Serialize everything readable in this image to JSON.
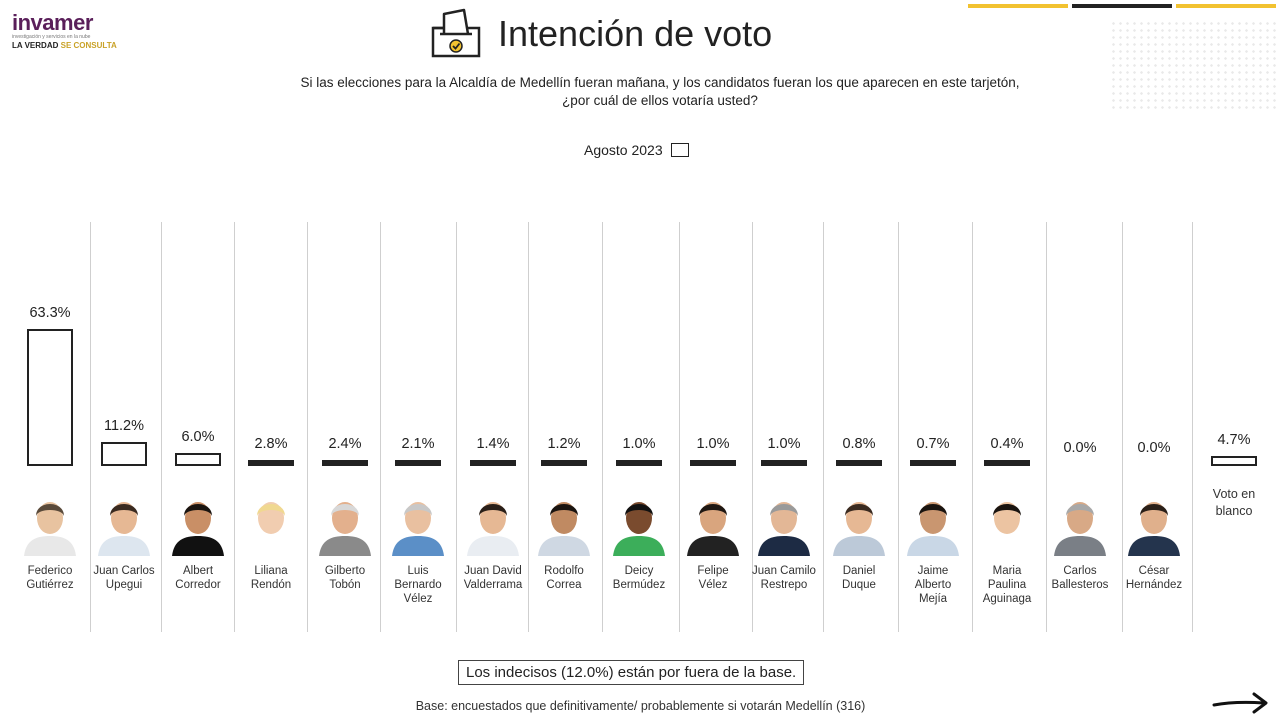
{
  "logo": {
    "brand": "invamer",
    "tagline": "investigación y servicios en la nube",
    "sub_prefix": "LA VERDAD",
    "sub_highlight": "SE CONSULTA"
  },
  "header": {
    "title": "Intención de voto",
    "question_line1": "Si las elecciones para la Alcaldía de Medellín fueran mañana, y los candidatos fueran los que aparecen en este tarjetón,",
    "question_line2": "¿por cuál de ellos votaría usted?",
    "accent_lines": [
      "#f2c230",
      "#222222",
      "#f2c230"
    ]
  },
  "chart_data": {
    "type": "bar",
    "title": "Intención de voto",
    "categories": [
      "Federico Gutiérrez",
      "Juan Carlos Upegui",
      "Albert Corredor",
      "Liliana Rendón",
      "Gilberto Tobón",
      "Luis Bernardo Vélez",
      "Juan David Valderrama",
      "Rodolfo Correa",
      "Deicy Bermúdez",
      "Felipe Vélez",
      "Juan Camilo Restrepo",
      "Daniel Duque",
      "Jaime Alberto Mejía",
      "Maria Paulina Aguinaga",
      "Carlos Ballesteros",
      "César Hernández",
      "Voto en blanco"
    ],
    "series": [
      {
        "name": "Agosto 2023",
        "values": [
          63.3,
          11.2,
          6.0,
          2.8,
          2.4,
          2.1,
          1.4,
          1.2,
          1.0,
          1.0,
          1.0,
          0.8,
          0.7,
          0.4,
          0.0,
          0.0,
          4.7
        ]
      }
    ],
    "value_labels": [
      "63.3%",
      "11.2%",
      "6.0%",
      "2.8%",
      "2.4%",
      "2.1%",
      "1.4%",
      "1.2%",
      "1.0%",
      "1.0%",
      "1.0%",
      "0.8%",
      "0.7%",
      "0.4%",
      "0.0%",
      "0.0%",
      "4.7%"
    ],
    "name_lines": [
      [
        "Federico",
        "Gutiérrez"
      ],
      [
        "Juan Carlos",
        "Upegui"
      ],
      [
        "Albert",
        "Corredor"
      ],
      [
        "Liliana",
        "Rendón"
      ],
      [
        "Gilberto",
        "Tobón"
      ],
      [
        "Luis",
        "Bernardo",
        "Vélez"
      ],
      [
        "Juan David",
        "Valderrama"
      ],
      [
        "Rodolfo",
        "Correa"
      ],
      [
        "Deicy",
        "Bermúdez"
      ],
      [
        "Felipe",
        "Vélez"
      ],
      [
        "Juan Camilo",
        "Restrepo"
      ],
      [
        "Daniel",
        "Duque"
      ],
      [
        "Jaime",
        "Alberto",
        "Mejía"
      ],
      [
        "Maria",
        "Paulina",
        "Aguinaga"
      ],
      [
        "Carlos",
        "Ballesteros"
      ],
      [
        "César",
        "Hernández"
      ],
      [
        "Voto en",
        "blanco"
      ]
    ],
    "ylim": [
      0,
      70
    ],
    "grid": false,
    "legend": {
      "label": "Agosto 2023",
      "position": "top-center"
    },
    "bar_fill": "#ffffff",
    "bar_border": "#222222"
  },
  "footer": {
    "note": "Los indecisos (12.0%) están por fuera de la base.",
    "base": "Base: encuestados que definitivamente/ probablemente si votarán Medellín (316)"
  }
}
